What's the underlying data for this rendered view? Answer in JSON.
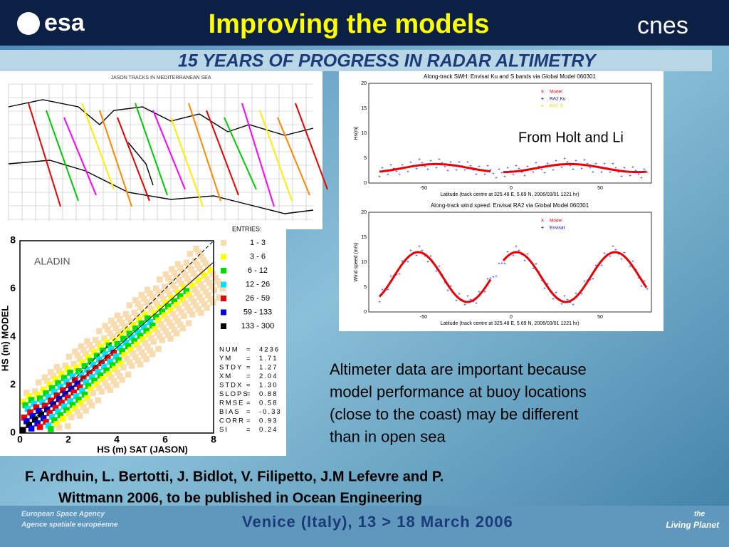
{
  "header": {
    "left_logo": "esa",
    "title": "Improving the models",
    "right_logo": "cnes",
    "banner": "15 YEARS OF PROGRESS IN RADAR ALTIMETRY"
  },
  "map": {
    "title": "JASON TRACKS IN MEDITERRANEAN SEA"
  },
  "scatter": {
    "label": "ALADIN",
    "x_label": "HS  (m)  SAT  (JASON)",
    "y_label": "HS  (m)  MODEL",
    "x_ticks": [
      "0",
      "2",
      "4",
      "6",
      "8"
    ],
    "y_ticks": [
      "0",
      "2",
      "4",
      "6",
      "8"
    ],
    "legend_title": "ENTRIES:",
    "legend": [
      {
        "label": "1 - 3",
        "color": "#f8dcb0"
      },
      {
        "label": "3 - 6",
        "color": "#ffff00"
      },
      {
        "label": "6 - 12",
        "color": "#00dd00"
      },
      {
        "label": "12 - 26",
        "color": "#00e0ff"
      },
      {
        "label": "26 - 59",
        "color": "#ee0000"
      },
      {
        "label": "59 - 133",
        "color": "#0000ee"
      },
      {
        "label": "133 - 300",
        "color": "#000000"
      }
    ],
    "stats": [
      [
        "NUM",
        "=",
        "4236"
      ],
      [
        "YM",
        "=",
        "1.71"
      ],
      [
        "STDY",
        "=",
        "1.27"
      ],
      [
        "XM",
        "=",
        "2.04"
      ],
      [
        "STDX",
        "=",
        "1.30"
      ],
      [
        "SLOPS",
        "=",
        "0.88"
      ],
      [
        "RMSE",
        "=",
        "0.58"
      ],
      [
        "BIAS",
        "=",
        "-0.33"
      ],
      [
        "CORR",
        "=",
        "0.93"
      ],
      [
        "SI",
        "=",
        "0.24"
      ]
    ]
  },
  "plots": [
    {
      "title": "Along-track SWH: Envisat Ku and S bands via Global Model 060301",
      "y_label": "Hs(m)",
      "y_ticks": [
        "0",
        "5",
        "10",
        "15",
        "20"
      ],
      "x_ticks": [
        "-50",
        "0",
        "50"
      ],
      "x_label": "Latitude (track centre at   325.48 E,   5.69 N, 2006/03/01 1221 hr)",
      "legend": [
        {
          "label": "Model",
          "color": "#ee0000"
        },
        {
          "label": "RA2 Ku",
          "color": "#0000ee"
        },
        {
          "label": "RA2 S",
          "color": "#e8d800"
        }
      ]
    },
    {
      "title": "Along-track wind speed: Envisat RA2 via Global Model 060301",
      "y_label": "Wind speed (m/s)",
      "y_ticks": [
        "0",
        "5",
        "10",
        "15",
        "20"
      ],
      "x_ticks": [
        "-50",
        "0",
        "50"
      ],
      "x_label": "Latitude (track centre at   325.48 E,   5.69 N, 2006/03/01 1221 hr)",
      "legend": [
        {
          "label": "Model",
          "color": "#ee0000"
        },
        {
          "label": "Envisat",
          "color": "#0000ee"
        }
      ]
    }
  ],
  "note": "From Holt and Li",
  "body": [
    "Altimeter data are important because",
    "model performance at buoy locations",
    "(close to the coast) may be different",
    "than in open sea"
  ],
  "citation": [
    "F. Ardhuin, L. Bertotti, J. Bidlot, V. Filipetto, J.M Lefevre and P.",
    "Wittmann 2006, to be published in Ocean Engineering"
  ],
  "footer": {
    "agency": [
      "European Space Agency",
      "Agence spatiale européenne"
    ],
    "event": "Venice (Italy), 13 > 18 March 2006",
    "brand": [
      "the",
      "Living Planet"
    ]
  }
}
